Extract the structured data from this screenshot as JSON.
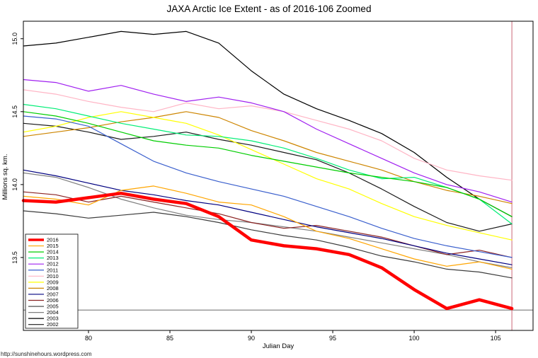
{
  "chart": {
    "title": "JAXA Arctic Ice Extent - as of 2016-106 Zoomed",
    "xlabel": "Julian Day",
    "ylabel": "Millions sq. km.",
    "watermark": "http://sunshinehours.wordpress.com"
  },
  "chart_data": {
    "type": "line",
    "title": "JAXA Arctic Ice Extent - as of 2016-106 Zoomed",
    "xlabel": "Julian Day",
    "ylabel": "Millions sq. km.",
    "xlim": [
      76,
      107.3
    ],
    "ylim": [
      13.0,
      15.12
    ],
    "x_ticks": [
      80,
      85,
      90,
      95,
      100,
      105
    ],
    "y_ticks": [
      13.5,
      14.0,
      14.5,
      15.0
    ],
    "grid": false,
    "legend_position": "bottom-left",
    "vertical_marker": {
      "x": 106,
      "color": "#CC6677"
    },
    "horizontal_marker": {
      "y": 13.14,
      "color": "#555555"
    },
    "x": [
      76,
      78,
      80,
      82,
      84,
      86,
      88,
      90,
      92,
      94,
      96,
      98,
      100,
      102,
      104,
      106
    ],
    "series": [
      {
        "name": "2016",
        "color": "#FF0000",
        "line_width": 4.5,
        "values": [
          13.89,
          13.88,
          13.91,
          13.94,
          13.9,
          13.87,
          13.78,
          13.62,
          13.58,
          13.56,
          13.52,
          13.43,
          13.28,
          13.15,
          13.21,
          13.15
        ]
      },
      {
        "name": "2015",
        "color": "#FFA500",
        "line_width": 1.2,
        "values": [
          13.92,
          13.9,
          13.86,
          13.96,
          13.99,
          13.94,
          13.88,
          13.86,
          13.78,
          13.68,
          13.63,
          13.56,
          13.49,
          13.44,
          13.47,
          13.42
        ]
      },
      {
        "name": "2014",
        "color": "#00CD00",
        "line_width": 1.2,
        "values": [
          14.5,
          14.47,
          14.42,
          14.36,
          14.3,
          14.27,
          14.25,
          14.2,
          14.16,
          14.12,
          14.08,
          14.05,
          14.02,
          13.98,
          13.9,
          13.78
        ]
      },
      {
        "name": "2013",
        "color": "#00EE76",
        "line_width": 1.2,
        "values": [
          14.55,
          14.52,
          14.47,
          14.42,
          14.38,
          14.34,
          14.33,
          14.3,
          14.25,
          14.18,
          14.1,
          14.04,
          14.05,
          13.98,
          13.9,
          13.73
        ]
      },
      {
        "name": "2012",
        "color": "#A020F0",
        "line_width": 1.2,
        "values": [
          14.72,
          14.7,
          14.64,
          14.68,
          14.62,
          14.57,
          14.6,
          14.56,
          14.5,
          14.38,
          14.28,
          14.18,
          14.08,
          14.0,
          13.95,
          13.88
        ]
      },
      {
        "name": "2011",
        "color": "#3A5FCD",
        "line_width": 1.2,
        "values": [
          14.47,
          14.45,
          14.4,
          14.28,
          14.16,
          14.08,
          14.02,
          13.97,
          13.92,
          13.85,
          13.78,
          13.7,
          13.63,
          13.58,
          13.54,
          13.5
        ]
      },
      {
        "name": "2010",
        "color": "#FFB5C5",
        "line_width": 1.2,
        "values": [
          14.65,
          14.62,
          14.57,
          14.53,
          14.5,
          14.56,
          14.52,
          14.54,
          14.5,
          14.44,
          14.38,
          14.3,
          14.18,
          14.1,
          14.06,
          14.03
        ]
      },
      {
        "name": "2009",
        "color": "#FFFF00",
        "line_width": 1.2,
        "values": [
          14.36,
          14.4,
          14.46,
          14.5,
          14.46,
          14.42,
          14.34,
          14.24,
          14.14,
          14.04,
          13.97,
          13.87,
          13.78,
          13.72,
          13.67,
          13.62
        ]
      },
      {
        "name": "2008",
        "color": "#CD8500",
        "line_width": 1.2,
        "values": [
          14.33,
          14.36,
          14.39,
          14.43,
          14.46,
          14.5,
          14.46,
          14.37,
          14.3,
          14.22,
          14.16,
          14.1,
          14.02,
          13.96,
          13.92,
          13.87
        ]
      },
      {
        "name": "2007",
        "color": "#000080",
        "line_width": 1.2,
        "values": [
          14.1,
          14.06,
          14.01,
          13.96,
          13.93,
          13.89,
          13.86,
          13.81,
          13.76,
          13.71,
          13.67,
          13.63,
          13.58,
          13.53,
          13.49,
          13.45
        ]
      },
      {
        "name": "2006",
        "color": "#8B2323",
        "line_width": 1.2,
        "values": [
          13.95,
          13.93,
          13.88,
          13.92,
          13.88,
          13.84,
          13.8,
          13.74,
          13.7,
          13.72,
          13.68,
          13.64,
          13.58,
          13.52,
          13.55,
          13.5
        ]
      },
      {
        "name": "2005",
        "color": "#3C3C3C",
        "line_width": 1.2,
        "values": [
          13.82,
          13.8,
          13.77,
          13.79,
          13.81,
          13.78,
          13.74,
          13.69,
          13.65,
          13.62,
          13.57,
          13.51,
          13.47,
          13.42,
          13.4,
          13.36
        ]
      },
      {
        "name": "2004",
        "color": "#808080",
        "line_width": 1.2,
        "values": [
          14.08,
          14.05,
          13.98,
          13.9,
          13.84,
          13.79,
          13.76,
          13.74,
          13.71,
          13.68,
          13.64,
          13.6,
          13.56,
          13.52,
          13.47,
          13.43
        ]
      },
      {
        "name": "2003",
        "color": "#000000",
        "line_width": 1.2,
        "values": [
          14.95,
          14.97,
          15.01,
          15.05,
          15.03,
          15.05,
          14.97,
          14.78,
          14.62,
          14.52,
          14.44,
          14.35,
          14.22,
          14.05,
          13.9,
          13.78
        ]
      },
      {
        "name": "2002",
        "color": "#1A1A1A",
        "line_width": 1.2,
        "values": [
          14.42,
          14.4,
          14.36,
          14.31,
          14.33,
          14.36,
          14.31,
          14.27,
          14.22,
          14.17,
          14.08,
          13.97,
          13.85,
          13.74,
          13.68,
          13.73
        ]
      }
    ]
  }
}
